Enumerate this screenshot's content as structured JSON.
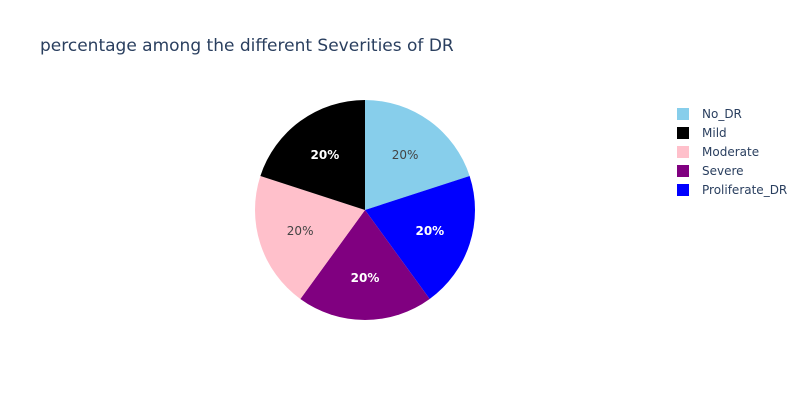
{
  "chart_data": {
    "type": "pie",
    "title": "percentage among the different Severities of DR",
    "slices": [
      {
        "label": "No_DR",
        "value": 20,
        "text": "20%",
        "color": "#87CEEB",
        "text_color": "#444444"
      },
      {
        "label": "Proliferate_DR",
        "value": 20,
        "text": "20%",
        "color": "#0000FF",
        "text_color": "#ffffff"
      },
      {
        "label": "Severe",
        "value": 20,
        "text": "20%",
        "color": "#800080",
        "text_color": "#ffffff"
      },
      {
        "label": "Moderate",
        "value": 20,
        "text": "20%",
        "color": "#FFC0CB",
        "text_color": "#444444"
      },
      {
        "label": "Mild",
        "value": 20,
        "text": "20%",
        "color": "#000000",
        "text_color": "#ffffff"
      }
    ],
    "legend": [
      "No_DR",
      "Mild",
      "Moderate",
      "Severe",
      "Proliferate_DR"
    ],
    "legend_position": "right",
    "direction": "clockwise",
    "start": "top"
  }
}
